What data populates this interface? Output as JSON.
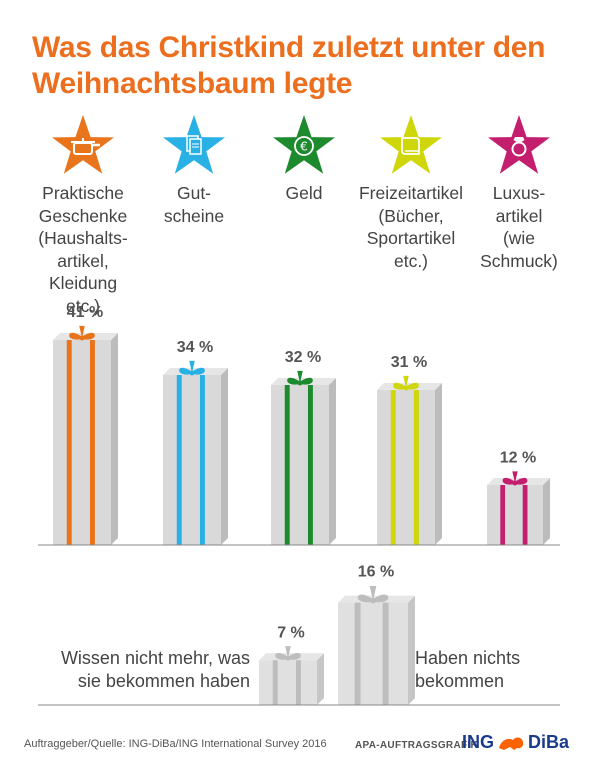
{
  "title_line1": "Was das Christkind zuletzt unter den",
  "title_line2": "Weihnachtsbaum legte",
  "categories": [
    {
      "label_lines": [
        "Praktische",
        "Geschenke",
        "(Haushalts-",
        "artikel,",
        "Kleidung etc.)"
      ],
      "icon": "cooking-pot-icon",
      "color": "#e8741b"
    },
    {
      "label_lines": [
        "Gut-",
        "scheine"
      ],
      "icon": "vouchers-icon",
      "color": "#29b0e5"
    },
    {
      "label_lines": [
        "Geld"
      ],
      "icon": "euro-coin-icon",
      "color": "#1e8a2e"
    },
    {
      "label_lines": [
        "Freizeitartikel",
        "(Bücher,",
        "Sportartikel",
        "etc.)"
      ],
      "icon": "book-icon",
      "color": "#cfd60a"
    },
    {
      "label_lines": [
        "Luxus-",
        "artikel",
        "(wie",
        "Schmuck)"
      ],
      "icon": "ring-icon",
      "color": "#c41e6e"
    }
  ],
  "chart_data": {
    "type": "bar",
    "title": "Was das Christkind zuletzt unter den Weihnachtsbaum legte",
    "categories": [
      "Praktische Geschenke (Haushaltsartikel, Kleidung etc.)",
      "Gutscheine",
      "Geld",
      "Freizeitartikel (Bücher, Sportartikel etc.)",
      "Luxusartikel (wie Schmuck)"
    ],
    "values": [
      41,
      34,
      32,
      31,
      12
    ],
    "value_labels": [
      "41 %",
      "34 %",
      "32 %",
      "31 %",
      "12 %"
    ],
    "colors": [
      "#e8741b",
      "#29b0e5",
      "#1e8a2e",
      "#cfd60a",
      "#c41e6e"
    ],
    "ylim": [
      0,
      45
    ],
    "secondary": {
      "categories": [
        "Wissen nicht mehr, was sie bekommen haben",
        "Haben nichts bekommen"
      ],
      "values": [
        7,
        16
      ],
      "value_labels": [
        "7 %",
        "16 %"
      ],
      "color": "#bdbdbd"
    }
  },
  "notes": {
    "left_line1": "Wissen nicht mehr, was",
    "left_line2": "sie bekommen haben",
    "right_line1": "Haben nichts",
    "right_line2": "bekommen"
  },
  "footer": {
    "source": "Auftraggeber/Quelle: ING-DiBa/ING International Survey 2016",
    "credit": "APA-AUFTRAGSGRAFIK",
    "brand_left": "ING",
    "brand_right": "DiBa"
  }
}
